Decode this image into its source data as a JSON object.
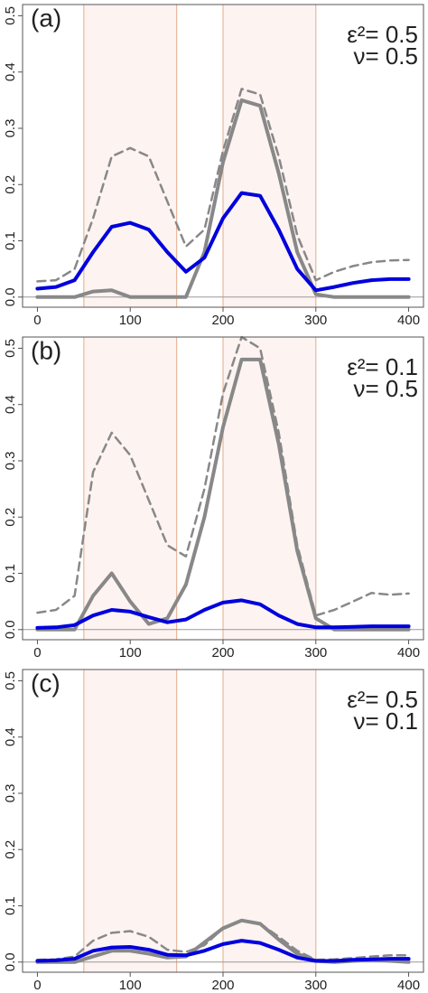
{
  "chart_data": [
    {
      "type": "line",
      "title": "(a)",
      "annotations": [
        "ε²= 0.5",
        "ν= 0.5"
      ],
      "x": [
        0,
        20,
        40,
        60,
        80,
        100,
        120,
        140,
        160,
        180,
        200,
        220,
        240,
        260,
        280,
        300,
        320,
        340,
        360,
        380,
        400
      ],
      "series": [
        {
          "color": "#888888",
          "dash": false,
          "values": [
            0,
            0,
            0,
            0.01,
            0.012,
            0,
            0,
            0,
            0,
            0.08,
            0.24,
            0.35,
            0.34,
            0.22,
            0.08,
            0.005,
            0,
            0,
            0,
            0,
            0
          ]
        },
        {
          "color": "#888888",
          "dash": true,
          "values": [
            0.028,
            0.03,
            0.05,
            0.14,
            0.25,
            0.265,
            0.25,
            0.17,
            0.09,
            0.12,
            0.26,
            0.37,
            0.36,
            0.25,
            0.11,
            0.03,
            0.045,
            0.055,
            0.062,
            0.065,
            0.066
          ]
        },
        {
          "color": "#0000dd",
          "dash": false,
          "values": [
            0.015,
            0.018,
            0.03,
            0.08,
            0.125,
            0.132,
            0.12,
            0.08,
            0.045,
            0.07,
            0.14,
            0.185,
            0.18,
            0.12,
            0.05,
            0.012,
            0.018,
            0.025,
            0.03,
            0.032,
            0.032
          ]
        }
      ],
      "shaded_ranges": [
        [
          50,
          150
        ],
        [
          200,
          300
        ]
      ],
      "shade_color": "#fdf3f1",
      "edge_color": "#e8b89c",
      "xlim": [
        -16,
        416
      ],
      "ylim": [
        -0.018,
        0.52
      ],
      "xticks": [
        0,
        100,
        200,
        300,
        400
      ],
      "yticks": [
        {
          "value": 0,
          "label": "0.0"
        },
        0.1,
        0.2,
        0.3,
        0.4,
        0.5
      ]
    },
    {
      "type": "line",
      "title": "(b)",
      "annotations": [
        "ε²= 0.1",
        "ν= 0.5"
      ],
      "x": [
        0,
        20,
        40,
        60,
        80,
        100,
        120,
        140,
        160,
        180,
        200,
        220,
        240,
        260,
        280,
        300,
        320,
        340,
        360,
        380,
        400
      ],
      "series": [
        {
          "color": "#888888",
          "dash": false,
          "values": [
            0,
            0,
            0,
            0.06,
            0.1,
            0.05,
            0.01,
            0.02,
            0.08,
            0.2,
            0.36,
            0.48,
            0.48,
            0.33,
            0.14,
            0.02,
            0,
            0,
            0,
            0,
            0
          ]
        },
        {
          "color": "#888888",
          "dash": true,
          "values": [
            0.03,
            0.035,
            0.06,
            0.28,
            0.35,
            0.31,
            0.23,
            0.15,
            0.13,
            0.25,
            0.42,
            0.52,
            0.5,
            0.35,
            0.15,
            0.025,
            0.035,
            0.05,
            0.065,
            0.062,
            0.064
          ]
        },
        {
          "color": "#0000dd",
          "dash": false,
          "values": [
            0.003,
            0.004,
            0.008,
            0.025,
            0.035,
            0.032,
            0.022,
            0.013,
            0.018,
            0.035,
            0.048,
            0.052,
            0.045,
            0.025,
            0.01,
            0.004,
            0.004,
            0.005,
            0.006,
            0.006,
            0.006
          ]
        }
      ],
      "shaded_ranges": [
        [
          50,
          150
        ],
        [
          200,
          300
        ]
      ],
      "shade_color": "#fdf3f1",
      "edge_color": "#e8b89c",
      "xlim": [
        -16,
        416
      ],
      "ylim": [
        -0.018,
        0.52
      ],
      "xticks": [
        0,
        100,
        200,
        300,
        400
      ],
      "yticks": [
        {
          "value": 0,
          "label": "0.0"
        },
        0.1,
        0.2,
        0.3,
        0.4,
        0.5
      ]
    },
    {
      "type": "line",
      "title": "(c)",
      "annotations": [
        "ε²= 0.5",
        "ν= 0.1"
      ],
      "x": [
        0,
        20,
        40,
        60,
        80,
        100,
        120,
        140,
        160,
        180,
        200,
        220,
        240,
        260,
        280,
        300,
        320,
        340,
        360,
        380,
        400
      ],
      "series": [
        {
          "color": "#888888",
          "dash": false,
          "values": [
            0,
            0,
            0,
            0.01,
            0.02,
            0.02,
            0.015,
            0.008,
            0.01,
            0.035,
            0.06,
            0.074,
            0.068,
            0.04,
            0.015,
            0.002,
            0,
            0.002,
            0.004,
            0.002,
            0
          ]
        },
        {
          "color": "#888888",
          "dash": true,
          "values": [
            0.004,
            0.005,
            0.01,
            0.038,
            0.052,
            0.055,
            0.045,
            0.022,
            0.018,
            0.03,
            0.06,
            0.073,
            0.068,
            0.045,
            0.02,
            0.004,
            0.005,
            0.007,
            0.01,
            0.012,
            0.012
          ]
        },
        {
          "color": "#0000dd",
          "dash": false,
          "values": [
            0.002,
            0.003,
            0.006,
            0.02,
            0.026,
            0.027,
            0.022,
            0.013,
            0.012,
            0.02,
            0.032,
            0.038,
            0.034,
            0.022,
            0.008,
            0.002,
            0.002,
            0.004,
            0.005,
            0.006,
            0.006
          ]
        }
      ],
      "shaded_ranges": [
        [
          50,
          150
        ],
        [
          200,
          300
        ]
      ],
      "shade_color": "#fdf3f1",
      "edge_color": "#e8b89c",
      "xlim": [
        -16,
        416
      ],
      "ylim": [
        -0.018,
        0.52
      ],
      "xticks": [
        0,
        100,
        200,
        300,
        400
      ],
      "yticks": [
        {
          "value": 0,
          "label": "0.0"
        },
        0.1,
        0.2,
        0.3,
        0.4,
        0.5
      ]
    }
  ]
}
